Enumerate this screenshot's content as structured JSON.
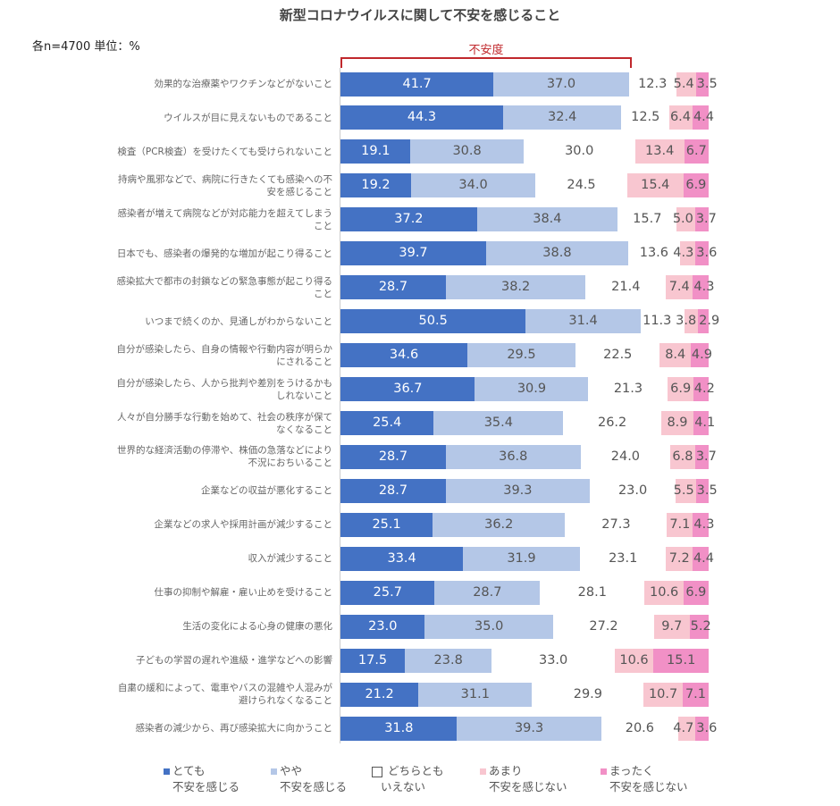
{
  "chart_data": {
    "type": "bar",
    "orientation": "horizontal",
    "stacked": true,
    "title": "新型コロナウイルスに関して不安を感じること",
    "note": "各n=4700  単位：%",
    "bracket_label": "不安度",
    "legend_position": "bottom",
    "categories": [
      "効果的な治療薬やワクチンなどがないこと",
      "ウイルスが目に見えないものであること",
      "検査（PCR検査）を受けたくても受けられないこと",
      "持病や風邪などで、病院に行きたくても感染への不安を感じること",
      "感染者が増えて病院などが対応能力を超えてしまうこと",
      "日本でも、感染者の爆発的な増加が起こり得ること",
      "感染拡大で都市の封鎖などの緊急事態が起こり得ること",
      "いつまで続くのか、見通しがわからないこと",
      "自分が感染したら、自身の情報や行動内容が明らかにされること",
      "自分が感染したら、人から批判や差別をうけるかもしれないこと",
      "人々が自分勝手な行動を始めて、社会の秩序が保てなくなること",
      "世界的な経済活動の停滞や、株価の急落などにより不況におちいること",
      "企業などの収益が悪化すること",
      "企業などの求人や採用計画が減少すること",
      "収入が減少すること",
      "仕事の抑制や解雇・雇い止めを受けること",
      "生活の変化による心身の健康の悪化",
      "子どもの学習の遅れや進級・進学などへの影響",
      "自粛の緩和によって、電車やバスの混雑や人混みが避けられなくなること",
      "感染者の減少から、再び感染拡大に向かうこと"
    ],
    "series": [
      {
        "name": "とても不安を感じる",
        "legend": [
          "とても",
          "不安を感じる"
        ],
        "color": "#4472c4",
        "values": [
          41.7,
          44.3,
          19.1,
          19.2,
          37.2,
          39.7,
          28.7,
          50.5,
          34.6,
          36.7,
          25.4,
          28.7,
          28.7,
          25.1,
          33.4,
          25.7,
          23.0,
          17.5,
          21.2,
          31.8
        ]
      },
      {
        "name": "やや不安を感じる",
        "legend": [
          "やや",
          "不安を感じる"
        ],
        "color": "#b4c7e7",
        "values": [
          37.0,
          32.4,
          30.8,
          34.0,
          38.4,
          38.8,
          38.2,
          31.4,
          29.5,
          30.9,
          35.4,
          36.8,
          39.3,
          36.2,
          31.9,
          28.7,
          35.0,
          23.8,
          31.1,
          39.3
        ]
      },
      {
        "name": "どちらともいえない",
        "legend": [
          "どちらとも",
          "いえない"
        ],
        "color": "#ffffff",
        "values": [
          12.3,
          12.5,
          30.0,
          24.5,
          15.7,
          13.6,
          21.4,
          11.3,
          22.5,
          21.3,
          26.2,
          24.0,
          23.0,
          27.3,
          23.1,
          28.1,
          27.2,
          33.0,
          29.9,
          20.6
        ]
      },
      {
        "name": "あまり不安を感じない",
        "legend": [
          "あまり",
          "不安を感じない"
        ],
        "color": "#f8c6d0",
        "values": [
          5.4,
          6.4,
          13.4,
          15.4,
          5.0,
          4.3,
          7.4,
          3.8,
          8.4,
          6.9,
          8.9,
          6.8,
          5.5,
          7.1,
          7.2,
          10.6,
          9.7,
          10.6,
          10.7,
          4.7
        ]
      },
      {
        "name": "まったく不安を感じない",
        "legend": [
          "まったく",
          "不安を感じない"
        ],
        "color": "#f190c6",
        "values": [
          3.5,
          4.4,
          6.7,
          6.9,
          3.7,
          3.6,
          4.3,
          2.9,
          4.9,
          4.2,
          4.1,
          3.7,
          3.5,
          4.3,
          4.4,
          6.9,
          5.2,
          15.1,
          7.1,
          3.6
        ]
      }
    ],
    "value_format": "one decimal",
    "grid": false
  }
}
